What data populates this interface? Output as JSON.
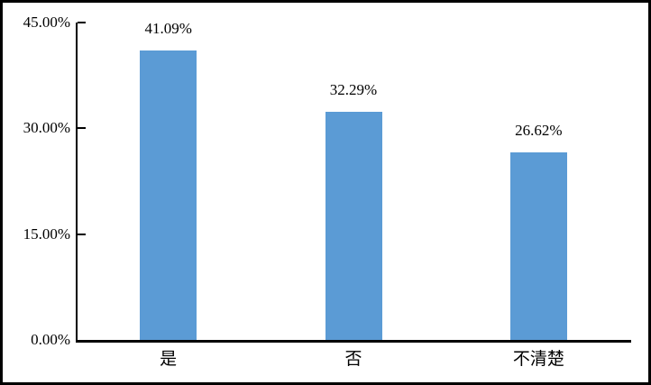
{
  "chart_data": {
    "type": "bar",
    "title": "",
    "xlabel": "",
    "ylabel": "",
    "categories": [
      "是",
      "否",
      "不清楚"
    ],
    "values": [
      41.09,
      32.29,
      26.62
    ],
    "value_labels": [
      "41.09%",
      "32.29%",
      "26.62%"
    ],
    "ylim": [
      0,
      45
    ],
    "y_ticks": [
      {
        "value": 0,
        "label": "0.00%"
      },
      {
        "value": 15,
        "label": "15.00%"
      },
      {
        "value": 30,
        "label": "30.00%"
      },
      {
        "value": 45,
        "label": "45.00%"
      }
    ],
    "grid": false,
    "legend": "none",
    "bar_color": "#5B9BD5"
  },
  "colors": {
    "bar": "#5B9BD5",
    "axis": "#000000",
    "text": "#000000",
    "background": "#FFFFFF",
    "frame_border": "#000000"
  }
}
